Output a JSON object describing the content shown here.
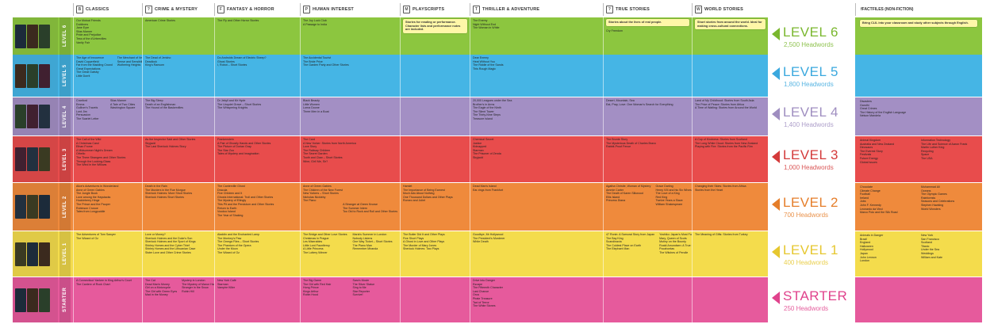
{
  "columns": [
    {
      "icon": "book-icon",
      "label": "CLASSICS"
    },
    {
      "icon": "question-icon",
      "label": "CRIME & MYSTERY"
    },
    {
      "icon": "flag-icon",
      "label": "FANTASY & HORROR"
    },
    {
      "icon": "person-icon",
      "label": "HUMAN INTEREST"
    },
    {
      "icon": "mask-icon",
      "label": "PLAYSCRIPTS"
    },
    {
      "icon": "gun-icon",
      "label": "THRILLER & ADVENTURE"
    },
    {
      "icon": "question-icon",
      "label": "TRUE STORIES"
    },
    {
      "icon": "globe-icon",
      "label": "WORLD STORIES"
    }
  ],
  "factfiles_header": {
    "label": "FACTFILES (NON-FICTION)",
    "icon": "f-icon"
  },
  "colors": {
    "level6": "#8cc63f",
    "level5": "#45b5e5",
    "level4": "#a38fc4",
    "level3": "#e84c4c",
    "level2": "#ef8a3c",
    "level1": "#f4dc4c",
    "starter": "#e65a9c",
    "level6_text": "#7ab72e",
    "level5_text": "#3aa8de",
    "level4_text": "#9f8ec0",
    "level3_text": "#d43a3a",
    "level2_text": "#e57e2a",
    "level1_text": "#e6c72f",
    "starter_text": "#e0428c"
  },
  "levels": [
    {
      "key": "level6",
      "vlabel": "LEVEL 6",
      "name": "LEVEL 6",
      "headwords": "2,500 Headwords",
      "cells": [
        [
          "Our Mutual Friends",
          "Dubliners",
          "Jane Eyre",
          "Silas Marner",
          "Pride and Prejudice",
          "Tess of the d'Urbervilles",
          "Vanity Fair"
        ],
        [
          "American Crime Stories"
        ],
        [
          "The Fly and Other Horror Stories"
        ],
        [
          "The Joy Luck Club",
          "A Passage to India"
        ],
        [
          "note:Stories for reading or performance. Character lists and performance notes are included."
        ],
        [
          "The Enemy",
          "Night Without End",
          "The Woman in White"
        ],
        [
          "note:Stories about the lives of real people.",
          "",
          "Cry Freedom"
        ],
        [
          "note:Short stories from around the world. Ideal for making cross-cultural connections."
        ]
      ],
      "factfiles": [
        "note:Bring CLIL into your classroom and study other subjects through English."
      ]
    },
    {
      "key": "level5",
      "vlabel": "LEVEL 5",
      "name": "LEVEL 5",
      "headwords": "1,800 Headwords",
      "cells": [
        [
          "two:The Age of Innocence|David Copperfield|Far from the Madding Crowd|Great Expectations|The Great Gatsby|Little Dorrit||The Merchant of Venice|Sense and Sensibility|Wuthering Heights"
        ],
        [
          "The Dead of Jericho",
          "Deadlock",
          "King's Ransom"
        ],
        [
          "Do Androids Dream of Electric Sheep?",
          "Ghost Stories",
          "I, Robot – Short Stories"
        ],
        [
          "The Accidental Tourist",
          "The Bride Price",
          "The Garden Party and Other Stories"
        ],
        [],
        [
          "Dear Enemy",
          "Heat Without You",
          "The Riddle of the Sands",
          "This Rough Magic"
        ],
        [],
        []
      ],
      "factfiles": []
    },
    {
      "key": "level4",
      "vlabel": "LEVEL 4",
      "name": "LEVEL 4",
      "headwords": "1,400 Headwords",
      "cells": [
        [
          "two:Cranford|Emma|Gulliver's Travels|Lord Jim|Persuasion|The Scarlet Letter||Silas Marner|A Tale of Two Cities|Washington Square"
        ],
        [
          "The Big Sleep",
          "Death of an Englishman",
          "The Hound of the Baskervilles"
        ],
        [
          "Dr Jekyll and Mr Hyde",
          "The Unquiet Grave – Short Stories",
          "The Whispering Knights"
        ],
        [
          "Black Beauty",
          "Little Women",
          "Lorna Doone",
          "Three Men in a Boat"
        ],
        [],
        [
          "20,000 Leagues under the Sea",
          "Brother's in Arms",
          "The Eagle of the Ninth",
          "The Silent Tower",
          "The Thirty-Nine Steps",
          "Treasure Island"
        ],
        [
          "Desert, Mountain, Sea",
          "Eat, Pray, Love: One Woman's Search for Everything"
        ],
        [
          "Land of My Childhood: Stories from South Asia",
          "The Price of Peace: Stories from Africa",
          "A Time of Waiting: Stories from Around the World"
        ]
      ],
      "factfiles": [
        "Disasters",
        "Gandhi",
        "Great Crimes",
        "The History of the English Language",
        "Nelson Mandela"
      ]
    },
    {
      "key": "level3",
      "vlabel": "LEVEL 3",
      "name": "LEVEL 3",
      "headwords": "1,000 Headwords",
      "cells": [
        [
          "The Call of the Wild",
          "A Christmas Carol",
          "Ethan Frome",
          "A Midsummer Night's Dream",
          "Othello",
          "The Three Strangers and Other Stories",
          "Through the Looking-Glass",
          "The Wind in the Willows"
        ],
        [
          "As the Inspector Said and Other Stories",
          "Skyjack!",
          "The Last Sherlock Holmes Story"
        ],
        [
          "Frankenstein",
          "A Pair of Ghostly Hands and Other Stories",
          "The Picture of Dorian Gray",
          "The Star Zoo",
          "Tales of Mystery and Imagination"
        ],
        [
          "The Card",
          "A New Yorker: Stories from North America",
          "Love Story",
          "The Railway Children",
          "The Secret Garden",
          "Tooth and Claw – Short Stories",
          "Wine, Girl! Me, Sir?"
        ],
        [],
        [
          "Chemical Secret",
          "Justice",
          "Kidnapped",
          "Starman",
          "The Prisoner of Zenda",
          "Skyjack!"
        ],
        [
          "The Bronte Story",
          "The Mysterious Death of Charles Bravo",
          "Rabbit-Proof Fence"
        ],
        [
          "A Cup of Kindness: Stories from Scotland",
          "The Long White Cloud: Stories from New Zealand",
          "Playing with Fire: Stories from the Pacific Rim"
        ]
      ],
      "factfiles": [
        "two:Animal Kingdom|Australia and New Zealand|Dinosaurs|The Everest Story|Festivals|Future Energy|Global Issues||Information Technology|The Life and Science of Aaron Frank|Martin Luther King|Recycling|Space|The USA"
      ]
    },
    {
      "key": "level2",
      "vlabel": "LEVEL 2",
      "name": "LEVEL 2",
      "headwords": "700 Headwords",
      "cells": [
        [
          "Alice's Adventures in Wonderland",
          "Anne of Green Gables",
          "The Jungle Book",
          "Love among the Haystacks",
          "Huckleberry Hinge",
          "The Prince and the Pauper",
          "Robinson Crusoe",
          "Tales from Longpuddle"
        ],
        [
          "Death in the Rain",
          "The Murders in the Rue Morgue",
          "Sherlock Holmes: More Short Stories",
          "Sherlock Holmes Short Stories"
        ],
        [
          "The Canterville Ghost",
          "Dracula",
          "Five Children and It",
          "Ghosts International: Troll and Other Stories",
          "The Mystery of Ellingly",
          "This Pit and the Pendulum and Other Stories",
          "Return to Earth",
          "Voodoo Island",
          "The Year of Shaking"
        ],
        [
          "Anne of Green Gables",
          "The Children of the New Forest",
          "New Yorkers – Short Stories",
          "Nicholas Nickleby",
          "The Piano",
          "two:|A Stranger at Green Knowe|The Summer Intern|Too Old to Rock and Roll and Other Stories"
        ],
        [
          "Hamlet",
          "The Importance of Being Earnest",
          "Much Ado About Nothing",
          "One Thousand Dollars and Other Plays",
          "Romeo and Juliet"
        ],
        [
          "Dead Man's Island",
          "Ear-rings from Frankfurt"
        ],
        [
          "two:Agatha Christie, Woman of Mystery|Ammie Carter|The Death of Karen Silkwood|Ellis Island|Princess Diana||Grace Darling|Henry VIII and his Six Wives|The Love of a King|Red King|Twelve Years a Slave|William Shakespeare"
        ],
        [
          "Changing their Skies: Stories from Africa",
          "Stories from the Heart"
        ]
      ],
      "factfiles": [
        "two:Chocolate|Climate Change|Football|Ireland|Jobs|John F. Kennedy|Leonardo da Vinci|Marco Polo and the Silk Road||Muhammad Ali|Oceans|The Olympic Games|Rainforests|Seasons and Celebrations|Stephen Hawking|World Wonders"
      ]
    },
    {
      "key": "level1",
      "vlabel": "LEVEL 1",
      "name": "LEVEL 1",
      "headwords": "400 Headwords",
      "cells": [
        [
          "The Adventures of Tom Sawyer",
          "The Wizard of Oz"
        ],
        [
          "Love or Money?",
          "Sherlock Holmes and the Duke's Son",
          "Sherlock Holmes and the Sport of Kings",
          "Shirley Homes and the Cyber Thief",
          "Shirley Homes and the Lithuanian Case",
          "Sister Love and Other Crime Stories"
        ],
        [
          "Aladdin and the Enchanted Lamp",
          "The Monkey's Paw",
          "The Omega Files – Short Stories",
          "The Phantom of the Opera",
          "Under the Moon",
          "The Wizard of Oz"
        ],
        [
          "two:The Bridge and Other Love Stories|Christmas in Prague|Les Miserables|Little Lord Fauntleroy|A Little Princess|The Lottery Winner||Maria's Summer in London|Nobody Listens|One Way Ticket – Short Stories|The Piano Man|Remember Miranda"
        ],
        [
          "The Butler Did It and Other Plays",
          "Five Short Plays",
          "A Ghost in Love and Other Plays",
          "The Murder of Mary Jones",
          "Sherlock Holmes: Two Plays"
        ],
        [
          "Goodbye, Mr Hollywood",
          "The President's Murderer",
          "White Death"
        ],
        [
          "two:47 Ronin: A Samurai Story from Japan|The Bay King|Scandinavia|The Coldest Place on Earth|The Elephant Man||Yoshiko: Japan's Most Faithful Dog|Mary, Queen of Scots|Mutiny on the Bounty|Roald Amundsen: A True Story|Pocahontas|The Witches of Pendle"
        ],
        [
          "The Meaning of Gifts: Stories from Turkey"
        ]
      ],
      "factfiles": [
        "two:Animals in Danger|Brazil|England|Halloween|Hollywood|Japan|John Lennon|London||New York|San Francisco|Scotland|Titanic|Under the Sea|Weddings|William and Kate"
      ]
    },
    {
      "key": "starter",
      "vlabel": "STARTER",
      "name": "STARTER",
      "headwords": "250 Headwords",
      "cells": [
        [
          "A Connecticut Yankee in King Arthur's Court",
          "The Canterv of Rock Chart"
        ],
        [
          "two:The Cat|Dead Man's Money|Girl on a Motorcycle|The Girl with Green Eyes|Mad in the Money||Mystery in London|The Mystery of Manor Hall|Stranger in the Snow|Robin Hill"
        ],
        [
          "New York Café",
          "Starman",
          "Vampire Killer"
        ],
        [
          "two:The Big Game|The Girl with Red Hair|Hong Prince|Kings Arthur|Robin Hood||Sara's Movie|The Silver Statue|Sing to Me|Star Reporter|Survive!"
        ],
        [],
        [
          "Drive into Danger",
          "Escape",
          "The Fifteenth Character",
          "Last Chance",
          "Orca",
          "Pirate Treasure",
          "Taxi of Terror",
          "The White Stones"
        ],
        [],
        []
      ],
      "factfiles": []
    }
  ]
}
